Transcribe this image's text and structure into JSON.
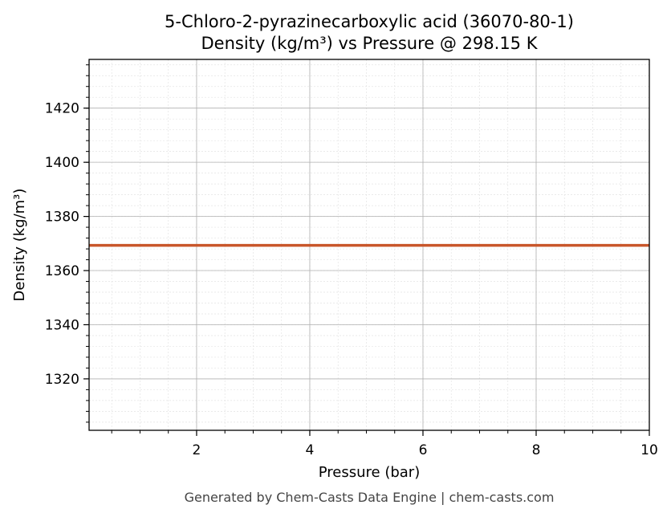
{
  "chart_data": {
    "type": "line",
    "title": "5-Chloro-2-pyrazinecarboxylic acid (36070-80-1)",
    "subtitle": "Density (kg/m³) vs Pressure @ 298.15 K",
    "xlabel": "Pressure (bar)",
    "ylabel": "Density (kg/m³)",
    "xlim": [
      0.1,
      10
    ],
    "ylim": [
      1301,
      1438
    ],
    "x_ticks": [
      2,
      4,
      6,
      8,
      10
    ],
    "y_ticks": [
      1320,
      1340,
      1360,
      1380,
      1400,
      1420
    ],
    "x_minor_step": 0.5,
    "y_minor_step": 4,
    "grid": true,
    "series": [
      {
        "color": "#c8562a",
        "x": [
          0.1,
          10
        ],
        "y": [
          1369.3,
          1369.3
        ]
      }
    ]
  },
  "footer": "Generated by Chem-Casts Data Engine | chem-casts.com"
}
